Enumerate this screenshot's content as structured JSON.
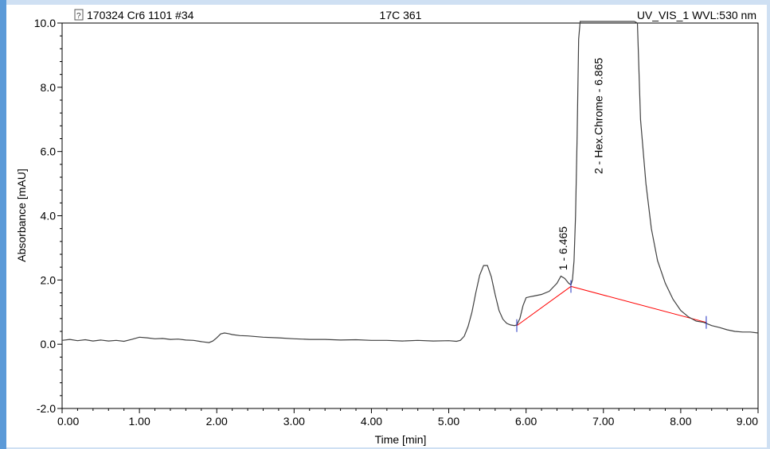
{
  "header": {
    "sample_icon": "question-document-icon",
    "sample_name": "170324 Cr6 1101 #34",
    "injection": "17C 361",
    "channel": "UV_VIS_1 WVL:530 nm"
  },
  "chart_data": {
    "type": "line",
    "title": "",
    "xlabel": "Time [min]",
    "ylabel": "Absorbance [mAU]",
    "xlim": [
      0.0,
      9.0
    ],
    "ylim": [
      -2.0,
      10.0
    ],
    "x_ticks": [
      "0.00",
      "1.00",
      "2.00",
      "3.00",
      "4.00",
      "5.00",
      "6.00",
      "7.00",
      "8.00",
      "9.00"
    ],
    "y_ticks": [
      "-2.0",
      "0.0",
      "2.0",
      "4.0",
      "6.0",
      "8.0",
      "10.0"
    ],
    "grid": false,
    "colors": {
      "trace": "#404040",
      "baseline": "#ff0000",
      "marker": "#2030c0"
    },
    "series": [
      {
        "x": [
          0.0,
          0.1,
          0.2,
          0.3,
          0.4,
          0.5,
          0.6,
          0.7,
          0.8,
          0.9,
          1.0,
          1.1,
          1.2,
          1.3,
          1.4,
          1.5,
          1.6,
          1.7,
          1.8,
          1.9,
          1.95,
          2.0,
          2.05,
          2.1,
          2.15,
          2.2,
          2.3,
          2.4,
          2.6,
          2.8,
          3.0,
          3.2,
          3.4,
          3.6,
          3.8,
          4.0,
          4.2,
          4.4,
          4.6,
          4.8,
          5.0,
          5.1,
          5.15,
          5.2,
          5.25,
          5.3,
          5.35,
          5.4,
          5.45,
          5.5,
          5.55,
          5.6,
          5.65,
          5.7,
          5.75,
          5.8,
          5.85,
          5.88,
          5.92,
          5.96,
          6.0,
          6.05,
          6.1,
          6.2,
          6.3,
          6.4,
          6.45,
          6.5,
          6.55,
          6.58,
          6.6,
          6.62,
          6.64,
          6.66,
          6.68,
          6.7,
          6.72,
          7.4,
          7.44,
          7.48,
          7.55,
          7.62,
          7.7,
          7.8,
          7.9,
          8.0,
          8.1,
          8.2,
          8.3,
          8.4,
          8.5,
          8.6,
          8.7,
          8.8,
          8.9,
          9.0
        ],
        "y": [
          0.12,
          0.15,
          0.11,
          0.14,
          0.1,
          0.13,
          0.1,
          0.12,
          0.09,
          0.15,
          0.22,
          0.2,
          0.17,
          0.18,
          0.15,
          0.16,
          0.13,
          0.12,
          0.08,
          0.05,
          0.1,
          0.2,
          0.32,
          0.35,
          0.33,
          0.3,
          0.27,
          0.26,
          0.22,
          0.2,
          0.17,
          0.15,
          0.15,
          0.13,
          0.14,
          0.12,
          0.12,
          0.1,
          0.12,
          0.1,
          0.11,
          0.09,
          0.12,
          0.25,
          0.55,
          1.0,
          1.6,
          2.15,
          2.45,
          2.45,
          2.1,
          1.55,
          1.05,
          0.78,
          0.65,
          0.6,
          0.58,
          0.6,
          0.8,
          1.2,
          1.45,
          1.48,
          1.5,
          1.55,
          1.65,
          1.9,
          2.12,
          2.05,
          1.9,
          1.85,
          2.0,
          2.6,
          4.0,
          6.5,
          9.5,
          11.0,
          12.0,
          12.0,
          10.0,
          7.0,
          5.0,
          3.6,
          2.6,
          1.9,
          1.4,
          1.05,
          0.85,
          0.72,
          0.68,
          0.58,
          0.52,
          0.45,
          0.4,
          0.38,
          0.38,
          0.35
        ]
      }
    ],
    "baseline_segments": [
      {
        "x": [
          5.88,
          6.58
        ],
        "y": [
          0.58,
          1.8
        ]
      },
      {
        "x": [
          6.58,
          8.33
        ],
        "y": [
          1.8,
          0.68
        ]
      }
    ],
    "peak_boundaries": [
      5.88,
      6.58,
      8.33
    ],
    "peaks": [
      {
        "x": 6.465,
        "label": "1 - 6.465"
      },
      {
        "x": 6.865,
        "label": "2 - Hex.Chrome - 6.865"
      }
    ]
  }
}
